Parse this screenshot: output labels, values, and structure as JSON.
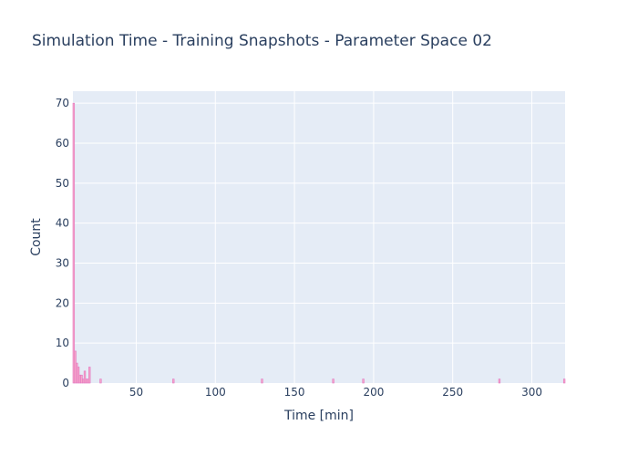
{
  "chart_data": {
    "type": "bar",
    "title": "Simulation Time - Training Snapshots - Parameter Space 02",
    "xlabel": "Time [min]",
    "ylabel": "Count",
    "xlim": [
      10,
      321
    ],
    "ylim": [
      0,
      73
    ],
    "xticks": [
      50,
      100,
      150,
      200,
      250,
      300
    ],
    "yticks": [
      0,
      10,
      20,
      30,
      40,
      50,
      60,
      70
    ],
    "bar_width": 1,
    "bars": [
      {
        "x": 10.5,
        "y": 70
      },
      {
        "x": 11.5,
        "y": 8
      },
      {
        "x": 12.5,
        "y": 5
      },
      {
        "x": 13.5,
        "y": 4
      },
      {
        "x": 14.5,
        "y": 2
      },
      {
        "x": 15.5,
        "y": 2
      },
      {
        "x": 16.5,
        "y": 1
      },
      {
        "x": 17.5,
        "y": 3
      },
      {
        "x": 18.5,
        "y": 1
      },
      {
        "x": 19.5,
        "y": 1
      },
      {
        "x": 20.5,
        "y": 4
      },
      {
        "x": 27.5,
        "y": 1
      },
      {
        "x": 73.5,
        "y": 1
      },
      {
        "x": 129.5,
        "y": 1
      },
      {
        "x": 174.5,
        "y": 1
      },
      {
        "x": 193.5,
        "y": 1
      },
      {
        "x": 279.5,
        "y": 1
      },
      {
        "x": 320.5,
        "y": 1
      }
    ],
    "colors": {
      "bar_fill": "#f7a7c9",
      "bar_edge": "#e377c2",
      "plot_bg": "#e5ecf6",
      "text": "#2a3f5f"
    },
    "grid": true,
    "legend": "none"
  }
}
